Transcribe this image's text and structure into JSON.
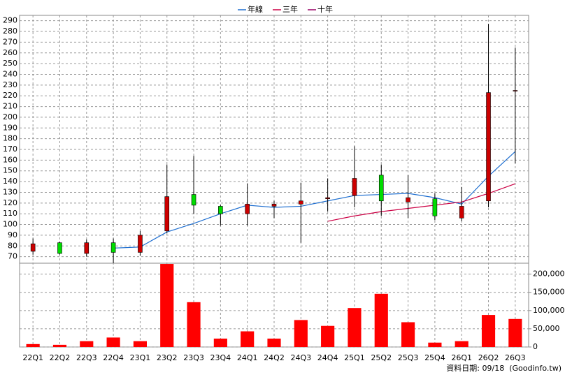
{
  "chart_data": {
    "type": "candlestick",
    "categories": [
      "22Q1",
      "22Q2",
      "22Q3",
      "22Q4",
      "23Q1",
      "23Q2",
      "23Q3",
      "23Q4",
      "24Q1",
      "24Q2",
      "24Q3",
      "24Q4",
      "25Q1",
      "25Q2",
      "25Q3",
      "25Q4",
      "26Q1",
      "26Q2",
      "26Q3"
    ],
    "open": [
      75,
      83,
      73,
      83,
      74,
      94,
      128,
      117,
      110,
      117,
      119,
      124,
      127,
      146,
      121,
      124,
      106,
      122,
      225
    ],
    "high": [
      87,
      84,
      86,
      87,
      94,
      156,
      164,
      118,
      138,
      122,
      139,
      143,
      173,
      156,
      146,
      129,
      135,
      287,
      265
    ],
    "low": [
      72,
      72,
      70,
      64,
      71,
      92,
      110,
      99,
      99,
      106,
      83,
      112,
      116,
      108,
      106,
      104,
      103,
      116,
      157
    ],
    "close": [
      82,
      73,
      83,
      74,
      90,
      126,
      118,
      110,
      119,
      119,
      122,
      125,
      143,
      122,
      125,
      108,
      117,
      223,
      225
    ],
    "up_color": "#cc0000",
    "down_color": "#00dd00",
    "series": [
      {
        "name": "年線",
        "color": "#1f6fd0",
        "values": [
          null,
          null,
          null,
          78,
          79,
          93,
          101,
          110,
          118,
          116,
          117,
          122,
          127,
          128,
          129,
          125,
          119,
          145,
          168
        ]
      },
      {
        "name": "三年",
        "color": "#cc0044",
        "values": [
          null,
          null,
          null,
          null,
          null,
          null,
          null,
          null,
          null,
          null,
          null,
          103,
          108,
          112,
          115,
          118,
          121,
          129,
          138
        ]
      },
      {
        "name": "十年",
        "color": "#990066",
        "values": [
          null,
          null,
          null,
          null,
          null,
          null,
          null,
          null,
          null,
          null,
          null,
          null,
          null,
          null,
          null,
          null,
          null,
          null,
          null
        ]
      }
    ],
    "ylim": [
      60,
      295
    ],
    "yticks": [
      70,
      80,
      90,
      100,
      110,
      120,
      130,
      140,
      150,
      160,
      170,
      180,
      190,
      200,
      210,
      220,
      230,
      240,
      250,
      260,
      270,
      280,
      290
    ],
    "volume": {
      "color": "#ff0000",
      "values": [
        8000,
        6000,
        16000,
        26000,
        16000,
        228000,
        123000,
        23000,
        43000,
        23000,
        74000,
        58000,
        107000,
        146000,
        68000,
        12000,
        16000,
        88000,
        77000
      ]
    },
    "y2lim": [
      0,
      230000
    ],
    "y2ticks": [
      0,
      {
        "value": 50000,
        "label": "50,000"
      },
      {
        "value": 100000,
        "label": "100,000"
      },
      {
        "value": 150000,
        "label": "150,000"
      },
      {
        "value": 200000,
        "label": "200,000"
      }
    ],
    "grid": true,
    "legend": "top",
    "source": "資料日期: 09/18  (Goodinfo.tw)"
  }
}
